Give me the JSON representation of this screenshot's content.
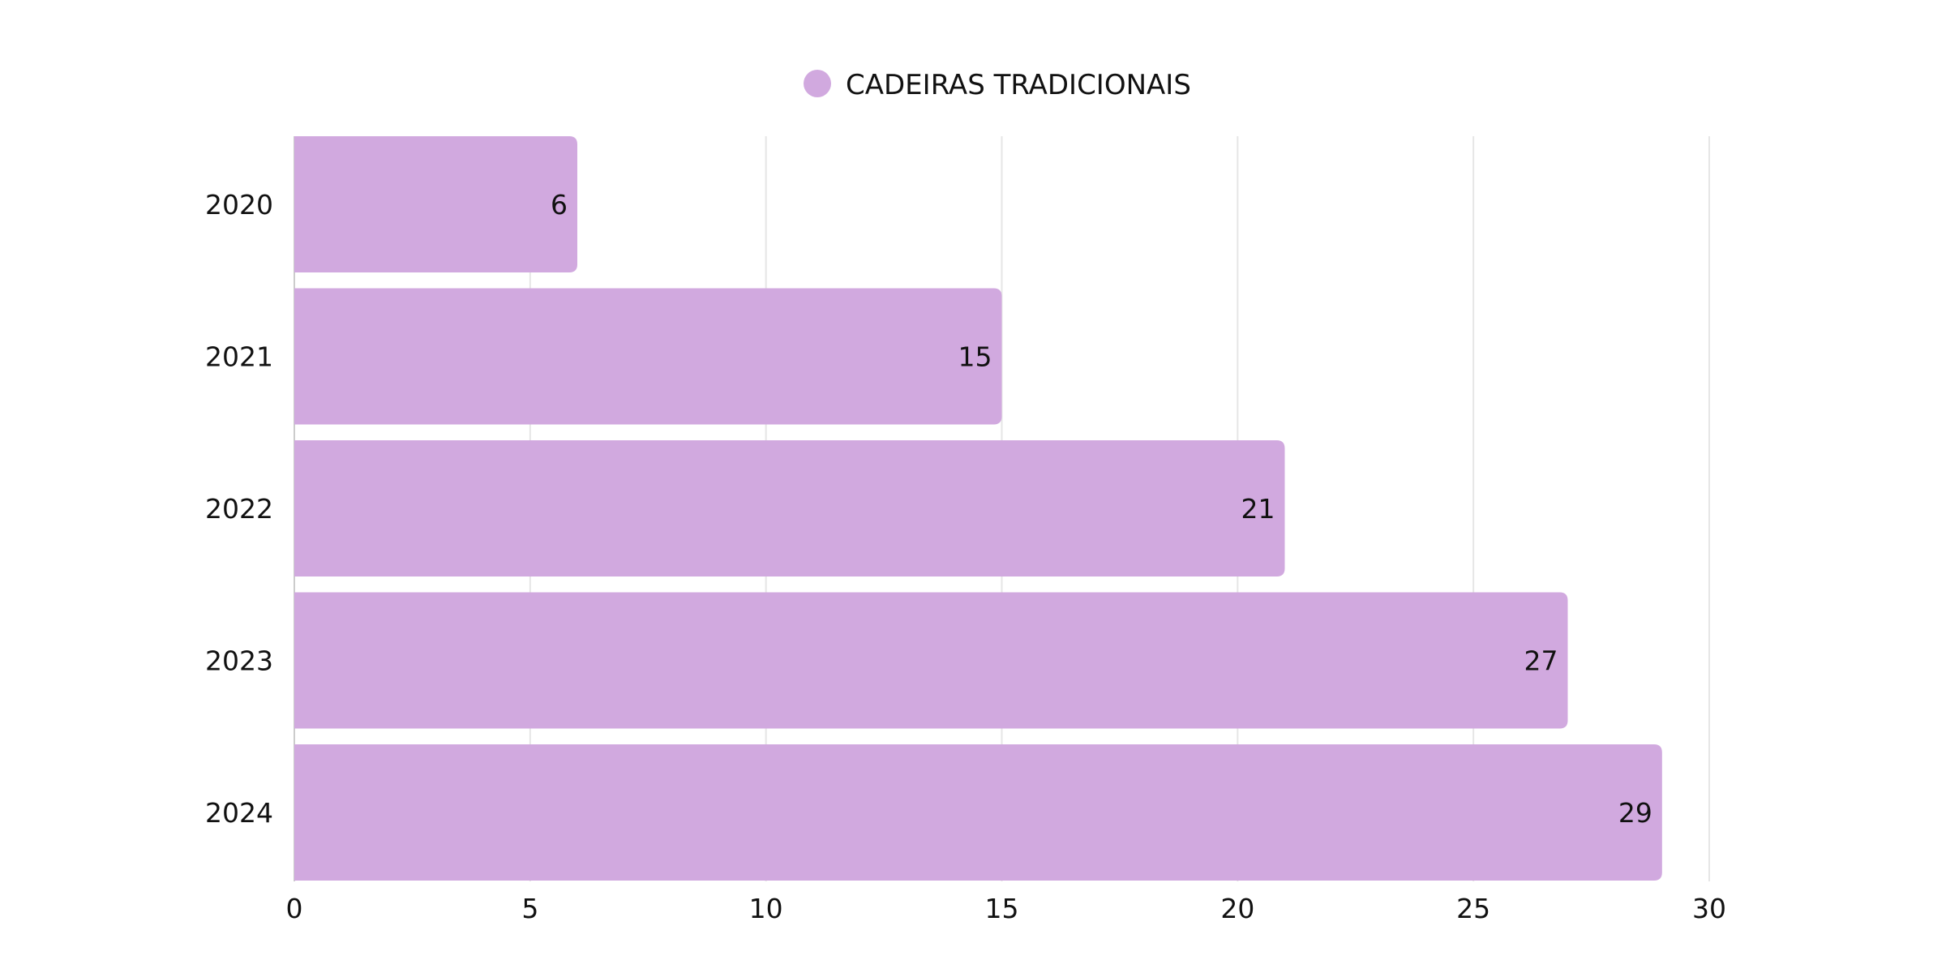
{
  "chart_data": {
    "type": "bar",
    "orientation": "horizontal",
    "categories": [
      "2020",
      "2021",
      "2022",
      "2023",
      "2024"
    ],
    "series": [
      {
        "name": "CADEIRAS TRADICIONAIS",
        "values": [
          6,
          15,
          21,
          27,
          29
        ],
        "color": "#d1a9df"
      }
    ],
    "xlim": [
      0,
      30
    ],
    "xticks": [
      "0",
      "5",
      "10",
      "15",
      "20",
      "25",
      "30"
    ],
    "grid": true,
    "legend_position": "top-center",
    "data_labels": [
      "6",
      "15",
      "21",
      "27",
      "29"
    ],
    "title": "",
    "xlabel": "",
    "ylabel": ""
  }
}
